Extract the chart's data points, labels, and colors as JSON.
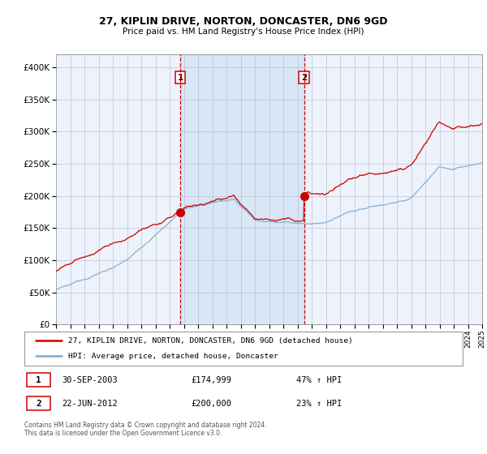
{
  "title": "27, KIPLIN DRIVE, NORTON, DONCASTER, DN6 9GD",
  "subtitle": "Price paid vs. HM Land Registry's House Price Index (HPI)",
  "red_label": "27, KIPLIN DRIVE, NORTON, DONCASTER, DN6 9GD (detached house)",
  "blue_label": "HPI: Average price, detached house, Doncaster",
  "sale1_date": "30-SEP-2003",
  "sale1_price": 174999,
  "sale1_hpi": "47% ↑ HPI",
  "sale2_date": "22-JUN-2012",
  "sale2_price": 200000,
  "sale2_hpi": "23% ↑ HPI",
  "footnote": "Contains HM Land Registry data © Crown copyright and database right 2024.\nThis data is licensed under the Open Government Licence v3.0.",
  "bg_color": "#eef2fb",
  "shade_color": "#d8e6f5",
  "red_color": "#cc0000",
  "blue_color": "#7aaad0",
  "ylim": [
    0,
    420000
  ],
  "yticks": [
    0,
    50000,
    100000,
    150000,
    200000,
    250000,
    300000,
    350000,
    400000
  ],
  "year_start": 1995,
  "year_end": 2025,
  "sale1_year": 2003.75,
  "sale2_year": 2012.47
}
